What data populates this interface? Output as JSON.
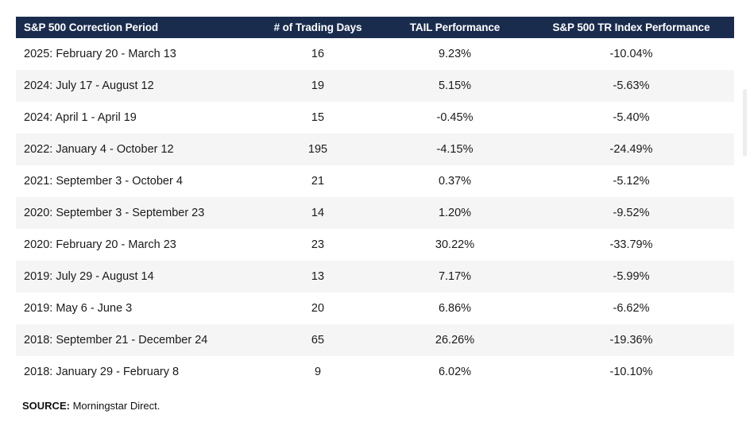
{
  "colors": {
    "header_bg": "#1a2c4e",
    "header_text": "#ffffff",
    "row_alt_bg": "#f5f5f5",
    "body_text": "#1a1a1a"
  },
  "table": {
    "columns": [
      "S&P 500 Correction Period",
      "# of Trading Days",
      "TAIL Performance",
      "S&P 500 TR Index Performance"
    ],
    "rows": [
      [
        "2025: February 20 - March 13",
        "16",
        "9.23%",
        "-10.04%"
      ],
      [
        "2024: July 17 - August 12",
        "19",
        "5.15%",
        "-5.63%"
      ],
      [
        "2024: April 1 - April 19",
        "15",
        "-0.45%",
        "-5.40%"
      ],
      [
        "2022: January 4 - October 12",
        "195",
        "-4.15%",
        "-24.49%"
      ],
      [
        "2021: September 3 - October 4",
        "21",
        "0.37%",
        "-5.12%"
      ],
      [
        "2020: September 3 - September 23",
        "14",
        "1.20%",
        "-9.52%"
      ],
      [
        "2020: February 20 - March 23",
        "23",
        "30.22%",
        "-33.79%"
      ],
      [
        "2019: July 29 - August 14",
        "13",
        "7.17%",
        "-5.99%"
      ],
      [
        "2019: May 6 - June 3",
        "20",
        "6.86%",
        "-6.62%"
      ],
      [
        "2018: September 21 - December 24",
        "65",
        "26.26%",
        "-19.36%"
      ],
      [
        "2018: January 29 - February 8",
        "9",
        "6.02%",
        "-10.10%"
      ]
    ]
  },
  "source": {
    "label": "SOURCE:",
    "text": "Morningstar Direct."
  },
  "chart_data": {
    "type": "table",
    "title": "",
    "columns": [
      "S&P 500 Correction Period",
      "# of Trading Days",
      "TAIL Performance",
      "S&P 500 TR Index Performance"
    ],
    "rows": [
      {
        "period": "2025: February 20 - March 13",
        "trading_days": 16,
        "tail_performance_pct": 9.23,
        "sp500_tr_performance_pct": -10.04
      },
      {
        "period": "2024: July 17 - August 12",
        "trading_days": 19,
        "tail_performance_pct": 5.15,
        "sp500_tr_performance_pct": -5.63
      },
      {
        "period": "2024: April 1 - April 19",
        "trading_days": 15,
        "tail_performance_pct": -0.45,
        "sp500_tr_performance_pct": -5.4
      },
      {
        "period": "2022: January 4 - October 12",
        "trading_days": 195,
        "tail_performance_pct": -4.15,
        "sp500_tr_performance_pct": -24.49
      },
      {
        "period": "2021: September 3 - October 4",
        "trading_days": 21,
        "tail_performance_pct": 0.37,
        "sp500_tr_performance_pct": -5.12
      },
      {
        "period": "2020: September 3 - September 23",
        "trading_days": 14,
        "tail_performance_pct": 1.2,
        "sp500_tr_performance_pct": -9.52
      },
      {
        "period": "2020: February 20 - March 23",
        "trading_days": 23,
        "tail_performance_pct": 30.22,
        "sp500_tr_performance_pct": -33.79
      },
      {
        "period": "2019: July 29 - August 14",
        "trading_days": 13,
        "tail_performance_pct": 7.17,
        "sp500_tr_performance_pct": -5.99
      },
      {
        "period": "2019: May 6 - June 3",
        "trading_days": 20,
        "tail_performance_pct": 6.86,
        "sp500_tr_performance_pct": -6.62
      },
      {
        "period": "2018: September 21 - December 24",
        "trading_days": 65,
        "tail_performance_pct": 26.26,
        "sp500_tr_performance_pct": -19.36
      },
      {
        "period": "2018: January 29 - February 8",
        "trading_days": 9,
        "tail_performance_pct": 6.02,
        "sp500_tr_performance_pct": -10.1
      }
    ],
    "source": "SOURCE: Morningstar Direct."
  }
}
